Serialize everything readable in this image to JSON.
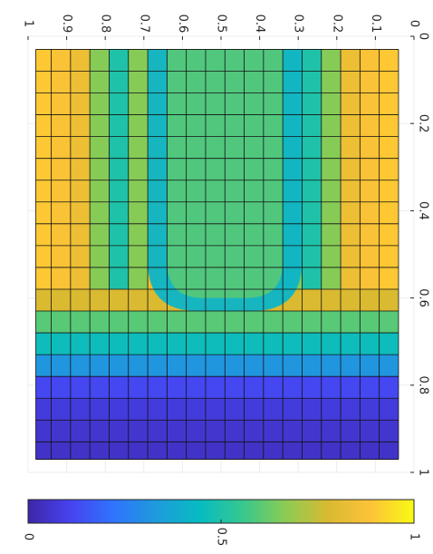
{
  "chart_data": {
    "type": "heatmap",
    "title": "",
    "xlabel": "",
    "ylabel": "",
    "rotated_display": "figure rotated 90 degrees clockwise",
    "x_axis": {
      "range": [
        0,
        1
      ],
      "ticks": [
        0,
        0.1,
        0.2,
        0.3,
        0.4,
        0.5,
        0.6,
        0.7,
        0.8,
        0.9,
        1
      ],
      "tick_labels": [
        "0",
        "0.1",
        "0.2",
        "0.3",
        "0.4",
        "0.5",
        "0.6",
        "0.7",
        "0.8",
        "0.9",
        "1"
      ]
    },
    "y_axis": {
      "range": [
        0,
        1
      ],
      "ticks": [
        0,
        0.2,
        0.4,
        0.6,
        0.8,
        1
      ],
      "tick_labels": [
        "0",
        "0.2",
        "0.4",
        "0.6",
        "0.8",
        "1"
      ]
    },
    "grid": true,
    "colormap": "parula",
    "colorbar": {
      "range": [
        0,
        1
      ],
      "ticks": [
        0,
        0.5,
        1
      ],
      "tick_labels": [
        "0",
        "0.5",
        "1"
      ],
      "colors": [
        "#3e26a8",
        "#4743f0",
        "#2f74fd",
        "#1e9bdb",
        "#07bbc2",
        "#36c88e",
        "#8ccb53",
        "#d9ba31",
        "#fdc338",
        "#f9fa14"
      ]
    },
    "mesh": {
      "x_edges": [
        0.04,
        0.09,
        0.14,
        0.19,
        0.24,
        0.29,
        0.34,
        0.39,
        0.44,
        0.49,
        0.54,
        0.59,
        0.64,
        0.69,
        0.74,
        0.79,
        0.84,
        0.89,
        0.94,
        0.98
      ],
      "y_edges": [
        0.03,
        0.08,
        0.13,
        0.18,
        0.23,
        0.28,
        0.33,
        0.38,
        0.43,
        0.48,
        0.53,
        0.58,
        0.63,
        0.68,
        0.73,
        0.78,
        0.83,
        0.88,
        0.93,
        0.97
      ]
    },
    "column_profile": [
      0.9,
      0.88,
      0.84,
      0.66,
      0.5,
      0.66,
      0.84,
      0.88,
      0.9,
      0.92,
      0.9,
      0.88,
      0.84,
      0.66,
      0.5,
      0.66,
      0.84,
      0.88,
      0.9
    ],
    "row_values": [
      null,
      null,
      null,
      null,
      null,
      null,
      null,
      null,
      null,
      null,
      null,
      0.78,
      0.6,
      0.46,
      0.32,
      0.12,
      0.08,
      0.06,
      0.05
    ],
    "channel": {
      "x_range": [
        0.29,
        0.69
      ],
      "y_bottom": 0.63,
      "value": 0.42,
      "inner_value": 0.6,
      "inner_y_range": [
        0.53,
        0.6
      ]
    }
  }
}
